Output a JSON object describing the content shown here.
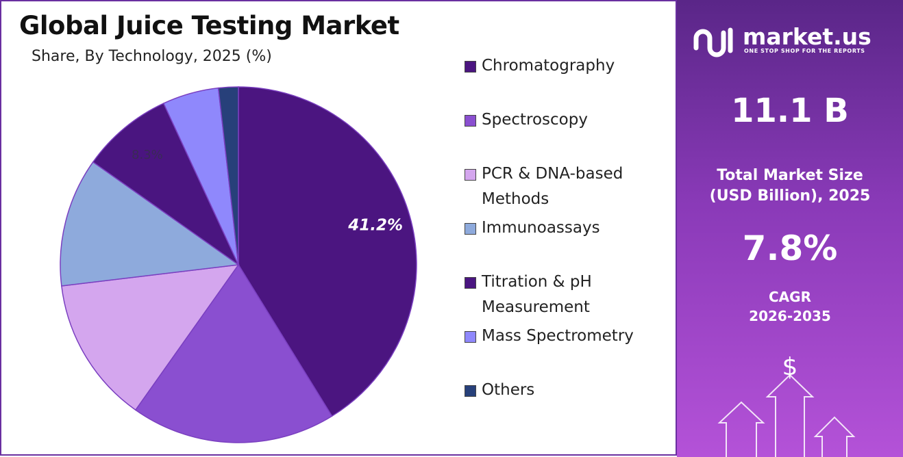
{
  "chart_data": {
    "type": "pie",
    "title": "Global Juice Testing Market",
    "subtitle": "Share, By Technology, 2025 (%)",
    "categories": [
      "Chromatography",
      "Spectroscopy",
      "PCR & DNA-based Methods",
      "Immunoassays",
      "Titration & pH Measurement",
      "Mass Spectrometry",
      "Others"
    ],
    "values": [
      41.2,
      18.6,
      13.3,
      11.7,
      8.3,
      5.1,
      1.8
    ],
    "value_labels": [
      "41.2%",
      null,
      null,
      null,
      "8.3%",
      null,
      null
    ],
    "colors": [
      "#4b1580",
      "#8a4fd0",
      "#d4a6ee",
      "#8eaadc",
      "#4a1580",
      "#8f88fc",
      "#27407a"
    ],
    "legend": "right"
  },
  "panel": {
    "brand": "market.us",
    "tagline": "ONE STOP SHOP FOR THE REPORTS",
    "market_size": "11.1 B",
    "market_size_label": "Total Market Size (USD Billion), 2025",
    "cagr": "7.8%",
    "cagr_label": "CAGR",
    "cagr_period": "2026-2035",
    "icon": "$"
  }
}
